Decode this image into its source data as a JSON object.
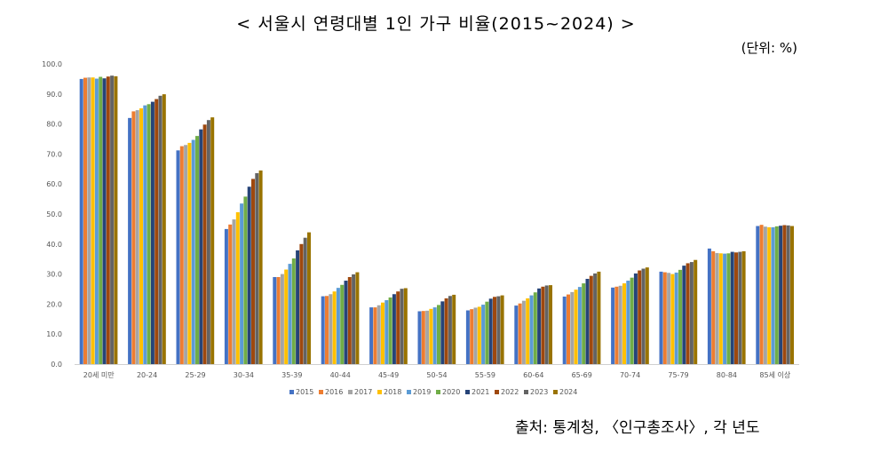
{
  "title": "< 서울시 연령대별 1인 가구 비율(2015~2024) >",
  "unit": "(단위: %)",
  "source": "출처: 통계청, 〈인구총조사〉, 각 년도",
  "colors": [
    "#4472C4",
    "#ED7D31",
    "#A5A5A5",
    "#FFC000",
    "#5B9BD5",
    "#70AD47",
    "#264478",
    "#9E480E",
    "#636363",
    "#997300"
  ],
  "chart_data": {
    "type": "bar",
    "title": "< 서울시 연령대별 1인 가구 비율(2015~2024) >",
    "xlabel": "",
    "ylabel": "",
    "ylim": [
      0,
      100
    ],
    "yticks": [
      "0.0",
      "10.0",
      "20.0",
      "30.0",
      "40.0",
      "50.0",
      "60.0",
      "70.0",
      "80.0",
      "90.0",
      "100.0"
    ],
    "grid": false,
    "legend": "bottom",
    "categories": [
      "20세 미만",
      "20-24",
      "25-29",
      "30-34",
      "35-39",
      "40-44",
      "45-49",
      "50-54",
      "55-59",
      "60-64",
      "65-69",
      "70-74",
      "75-79",
      "80-84",
      "85세 이상"
    ],
    "series": [
      {
        "name": "2015",
        "values": [
          95.0,
          82.0,
          71.2,
          45.0,
          29.0,
          22.6,
          18.9,
          17.6,
          17.9,
          19.5,
          22.5,
          25.5,
          30.8,
          38.5,
          46.0
        ]
      },
      {
        "name": "2016",
        "values": [
          95.4,
          84.2,
          72.6,
          46.5,
          29.0,
          22.7,
          18.9,
          17.7,
          18.3,
          20.2,
          23.2,
          25.8,
          30.6,
          37.6,
          46.4
        ]
      },
      {
        "name": "2017",
        "values": [
          95.5,
          84.6,
          73.0,
          48.2,
          30.0,
          23.3,
          19.6,
          17.8,
          18.8,
          21.1,
          24.0,
          26.1,
          30.4,
          37.0,
          45.8
        ]
      },
      {
        "name": "2018",
        "values": [
          95.5,
          85.2,
          73.7,
          50.6,
          31.5,
          24.2,
          20.5,
          18.4,
          19.1,
          21.9,
          24.8,
          26.9,
          30.0,
          36.9,
          45.6
        ]
      },
      {
        "name": "2019",
        "values": [
          95.1,
          86.2,
          74.7,
          53.5,
          33.4,
          25.4,
          21.3,
          18.9,
          19.8,
          22.9,
          25.7,
          27.8,
          30.5,
          36.8,
          45.6
        ]
      },
      {
        "name": "2020",
        "values": [
          95.7,
          86.6,
          76.0,
          55.8,
          35.2,
          26.4,
          22.2,
          19.7,
          20.8,
          23.9,
          26.9,
          28.8,
          31.4,
          36.9,
          45.9
        ]
      },
      {
        "name": "2021",
        "values": [
          95.2,
          87.4,
          78.2,
          59.1,
          37.9,
          27.8,
          23.3,
          20.9,
          21.8,
          25.2,
          28.4,
          30.2,
          32.8,
          37.4,
          46.1
        ]
      },
      {
        "name": "2022",
        "values": [
          95.8,
          88.3,
          79.8,
          61.7,
          40.0,
          29.0,
          24.2,
          21.9,
          22.4,
          25.8,
          29.4,
          31.2,
          33.6,
          37.2,
          46.3
        ]
      },
      {
        "name": "2023",
        "values": [
          96.1,
          89.4,
          81.3,
          63.6,
          42.1,
          29.9,
          25.1,
          22.7,
          22.6,
          26.2,
          30.2,
          31.8,
          34.0,
          37.4,
          46.2
        ]
      },
      {
        "name": "2024",
        "values": [
          95.9,
          89.9,
          82.2,
          64.5,
          43.9,
          30.6,
          25.3,
          23.1,
          22.9,
          26.3,
          30.8,
          32.2,
          34.7,
          37.6,
          46.0
        ]
      }
    ]
  }
}
